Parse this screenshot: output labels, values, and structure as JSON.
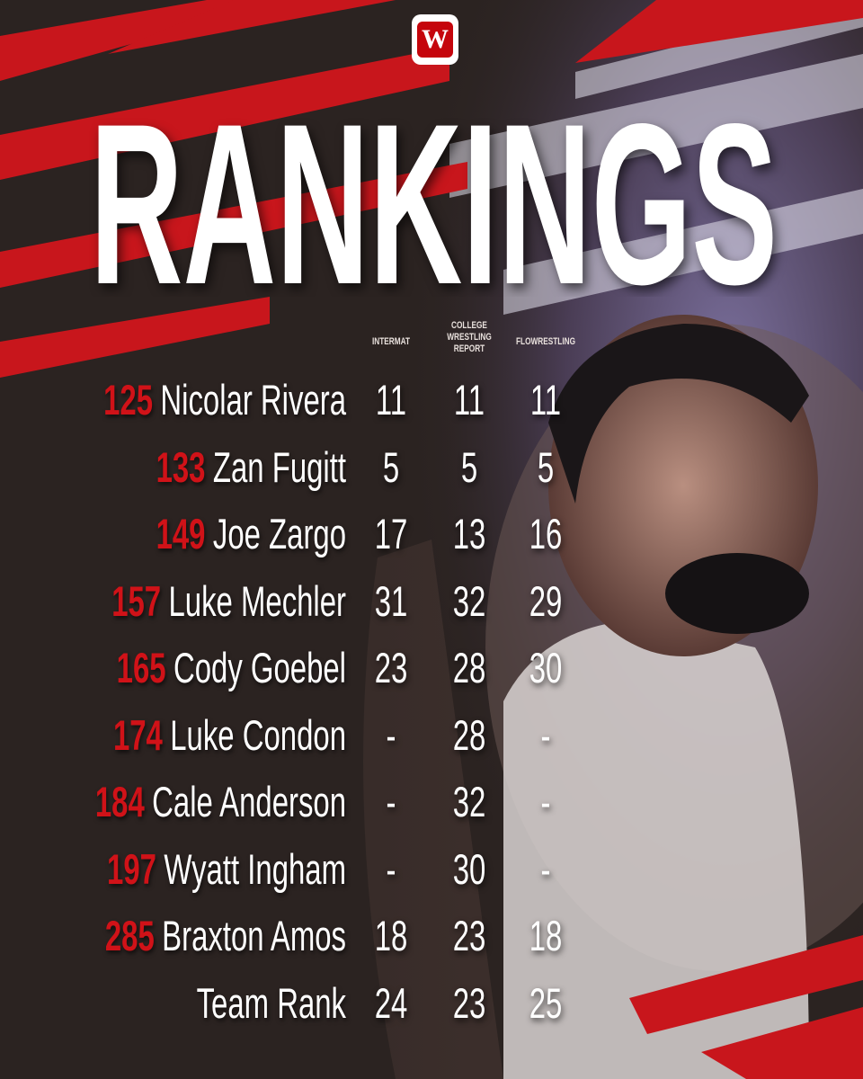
{
  "logo": "W",
  "title": "RANKINGS",
  "table": {
    "columns": [
      "INTERMAT",
      "COLLEGE WRESTLING REPORT",
      "FLOWRESTLING"
    ],
    "rows": [
      {
        "weight": "125",
        "name": "Nicolar Rivera",
        "ranks": [
          "11",
          "11",
          "11"
        ]
      },
      {
        "weight": "133",
        "name": "Zan Fugitt",
        "ranks": [
          "5",
          "5",
          "5"
        ]
      },
      {
        "weight": "149",
        "name": "Joe Zargo",
        "ranks": [
          "17",
          "13",
          "16"
        ]
      },
      {
        "weight": "157",
        "name": "Luke Mechler",
        "ranks": [
          "31",
          "32",
          "29"
        ]
      },
      {
        "weight": "165",
        "name": "Cody Goebel",
        "ranks": [
          "23",
          "28",
          "30"
        ]
      },
      {
        "weight": "174",
        "name": "Luke Condon",
        "ranks": [
          "-",
          "28",
          "-"
        ]
      },
      {
        "weight": "184",
        "name": "Cale Anderson",
        "ranks": [
          "-",
          "32",
          "-"
        ]
      },
      {
        "weight": "197",
        "name": "Wyatt Ingham",
        "ranks": [
          "-",
          "30",
          "-"
        ]
      },
      {
        "weight": "285",
        "name": "Braxton Amos",
        "ranks": [
          "18",
          "23",
          "18"
        ]
      },
      {
        "name": "Team Rank",
        "ranks": [
          "24",
          "23",
          "25"
        ]
      }
    ]
  }
}
